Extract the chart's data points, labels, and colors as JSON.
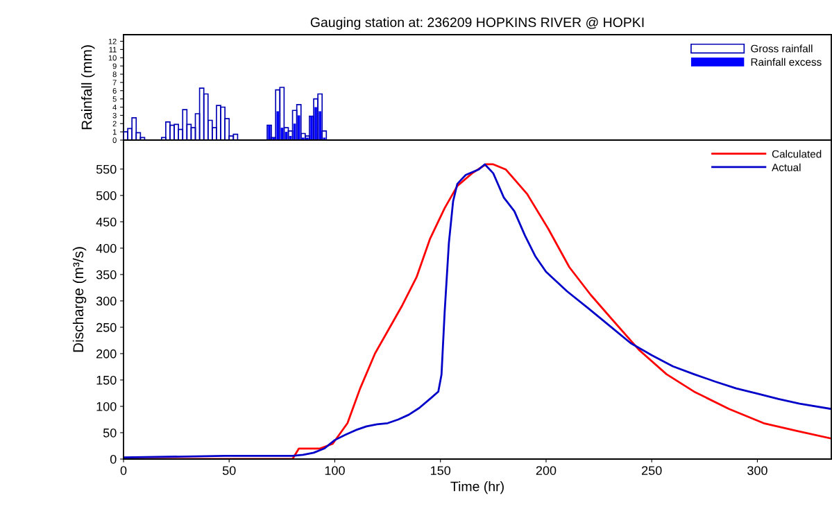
{
  "chart_data": [
    {
      "type": "histogram",
      "title": "Gauging station at: 236209 HOPKINS RIVER @ HOPKI",
      "ylabel": "Rainfall (mm)",
      "bins": [
        0,
        2,
        4,
        6,
        8,
        10,
        12,
        14,
        16,
        18,
        20,
        22,
        24,
        26,
        28,
        30,
        32,
        34,
        36,
        38,
        40,
        42,
        44,
        46,
        48,
        50,
        52,
        54,
        56,
        58,
        60,
        62,
        64,
        66,
        68,
        70,
        72,
        74,
        76,
        78,
        80,
        82,
        84,
        86,
        88,
        90,
        92,
        94,
        96
      ],
      "series": [
        {
          "name": "Gross rainfall",
          "color": "#0000b4",
          "values": [
            1.0,
            1.4,
            2.7,
            0.9,
            0.3,
            0,
            0,
            0,
            0,
            0.3,
            2.2,
            1.8,
            1.9,
            1.3,
            3.7,
            1.9,
            1.5,
            3.2,
            6.3,
            5.6,
            2.4,
            1.5,
            4.2,
            4.0,
            2.6,
            0.5,
            0.7,
            0,
            0,
            0,
            0,
            0,
            0,
            0,
            1.8,
            0.3,
            6.1,
            6.4,
            1.5,
            1.1,
            3.6,
            4.3,
            0.8,
            0.5,
            2.9,
            5.0,
            5.6,
            1.1
          ]
        },
        {
          "name": "Rainfall excess",
          "color": "#0000ff",
          "values": [
            0,
            0,
            0,
            0,
            0,
            0,
            0,
            0,
            0,
            0,
            0,
            0,
            0,
            0,
            0,
            0,
            0,
            0,
            0,
            0,
            0,
            0,
            0,
            0,
            0,
            0,
            0,
            0,
            0,
            0,
            0,
            0,
            0,
            0,
            1.8,
            0.3,
            3.5,
            1.5,
            1.0,
            0.5,
            2.0,
            3.0,
            0.3,
            0.3,
            2.9,
            4.0,
            3.5,
            0.3
          ]
        }
      ],
      "xlim": [
        0,
        335
      ],
      "ylim": [
        0,
        12.8
      ],
      "yticks": [
        0,
        1,
        2,
        3,
        4,
        5,
        6,
        7,
        8,
        9,
        10,
        11,
        12
      ],
      "tick_labels": "y",
      "legend": "top right",
      "grid": false
    },
    {
      "type": "line",
      "xlabel": "Time (hr)",
      "ylabel": "Discharge (m³/s)",
      "series": [
        {
          "name": "Calculated",
          "color": "#ff0000",
          "x": [
            0,
            80,
            83,
            93,
            99,
            106,
            112,
            119,
            125.5,
            132,
            138.7,
            145,
            152,
            158,
            165,
            171.5,
            175,
            181,
            191,
            201,
            211,
            221,
            231,
            244,
            257,
            270,
            286.6,
            303,
            319,
            335
          ],
          "values": [
            0,
            0,
            20,
            20,
            29,
            68,
            134,
            200,
            246,
            292,
            345,
            417,
            476,
            518,
            542,
            559,
            559,
            549,
            503,
            437,
            364,
            312,
            266,
            207,
            161,
            128,
            95,
            68,
            53,
            39
          ]
        },
        {
          "name": "Actual",
          "color": "#0000c8",
          "x": [
            0,
            48,
            80,
            85,
            90,
            95,
            100,
            105,
            110,
            115,
            120,
            125,
            130,
            135,
            140,
            145,
            149,
            150.5,
            152,
            154,
            156,
            158,
            162,
            168,
            171,
            175,
            180,
            185,
            190,
            195,
            200,
            210,
            220,
            230,
            240,
            250,
            260,
            270,
            280,
            290,
            300,
            310,
            320,
            335
          ],
          "values": [
            3,
            6,
            6,
            8,
            12,
            20,
            36,
            46,
            55,
            62,
            66,
            68,
            75,
            84,
            97,
            114,
            128,
            160,
            279,
            410,
            489,
            522,
            539,
            549,
            559,
            542,
            496,
            470,
            424,
            384,
            355,
            318,
            286,
            253,
            220,
            197,
            176,
            161,
            147,
            134,
            124,
            114,
            105,
            95
          ]
        }
      ],
      "xlim": [
        0,
        335
      ],
      "ylim": [
        0,
        605
      ],
      "xticks": [
        0,
        50,
        100,
        150,
        200,
        250,
        300
      ],
      "yticks": [
        0,
        50,
        100,
        150,
        200,
        250,
        300,
        350,
        400,
        450,
        500,
        550
      ],
      "legend": "top right",
      "grid": false,
      "line_style": "solid",
      "marker": "none"
    }
  ]
}
